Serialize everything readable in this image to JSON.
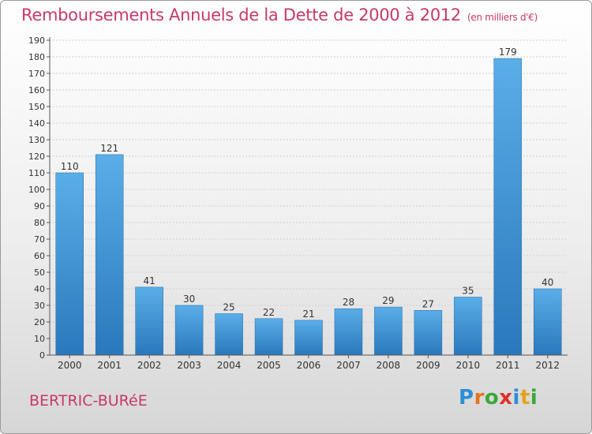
{
  "header": {
    "title": "Remboursements Annuels de la Dette de 2000 à 2012",
    "unit_note": "(en milliers d'€)"
  },
  "footer": {
    "commune": "BERTRIC-BURéE",
    "logo": {
      "letters": [
        "P",
        "r",
        "o",
        "x",
        "i",
        "t",
        "i"
      ],
      "colors": [
        "#2a8fd6",
        "#e6731e",
        "#3aa83a",
        "#e0302a",
        "#2a8fd6",
        "#e6a21e",
        "#3aa83a"
      ]
    }
  },
  "chart_data": {
    "type": "bar",
    "title": "Remboursements Annuels de la Dette de 2000 à 2012",
    "xlabel": "",
    "ylabel": "",
    "categories": [
      "2000",
      "2001",
      "2002",
      "2003",
      "2004",
      "2005",
      "2006",
      "2007",
      "2008",
      "2009",
      "2010",
      "2011",
      "2012"
    ],
    "values": [
      110,
      121,
      41,
      30,
      25,
      22,
      21,
      28,
      29,
      27,
      35,
      179,
      40
    ],
    "data_labels": [
      "110",
      "121",
      "41",
      "30",
      "25",
      "22",
      "21",
      "28",
      "29",
      "27",
      "35",
      "179",
      "40"
    ],
    "ylim": [
      0,
      190
    ],
    "yticks": [
      0,
      10,
      20,
      30,
      40,
      50,
      60,
      70,
      80,
      90,
      100,
      110,
      120,
      130,
      140,
      150,
      160,
      170,
      180,
      190
    ],
    "grid": true,
    "legend": "none",
    "colors": {
      "bar_top": "#5aaee8",
      "bar_bottom": "#2a78bc",
      "grid": "#d0d0d0",
      "axis": "#555555",
      "text": "#333333"
    }
  }
}
